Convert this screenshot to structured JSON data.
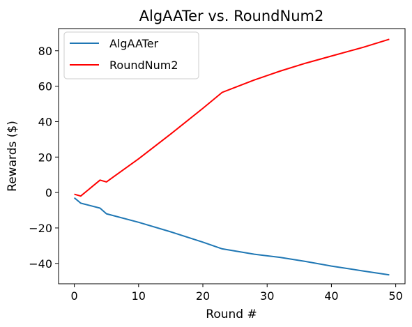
{
  "chart_data": {
    "type": "line",
    "title": "AlgAATer vs. RoundNum2",
    "xlabel": "Round #",
    "ylabel": "Rewards ($)",
    "xlim": [
      -2.45,
      51.45
    ],
    "ylim": [
      -51.5,
      92.5
    ],
    "xticks": [
      0,
      10,
      20,
      30,
      40,
      50
    ],
    "yticks": [
      -40,
      -20,
      0,
      20,
      40,
      60,
      80
    ],
    "grid": false,
    "legend_position": "top-left",
    "series": [
      {
        "name": "AlgAATer",
        "color": "#1f77b4",
        "x": [
          0,
          1,
          4,
          5,
          10,
          15,
          20,
          23,
          28,
          32,
          36,
          40,
          45,
          49
        ],
        "y": [
          -3,
          -6,
          -8.8,
          -12,
          -16.8,
          -22.2,
          -28,
          -31.8,
          -34.8,
          -36.6,
          -38.9,
          -41.5,
          -44.3,
          -46.5
        ]
      },
      {
        "name": "RoundNum2",
        "color": "#ff0000",
        "x": [
          0,
          1,
          4,
          5,
          10,
          15,
          20,
          23,
          28,
          32,
          36,
          40,
          45,
          49
        ],
        "y": [
          -1,
          -2,
          7,
          6,
          19,
          33,
          47.5,
          56.5,
          63.5,
          68.5,
          73,
          77,
          82,
          86.5
        ]
      }
    ]
  }
}
